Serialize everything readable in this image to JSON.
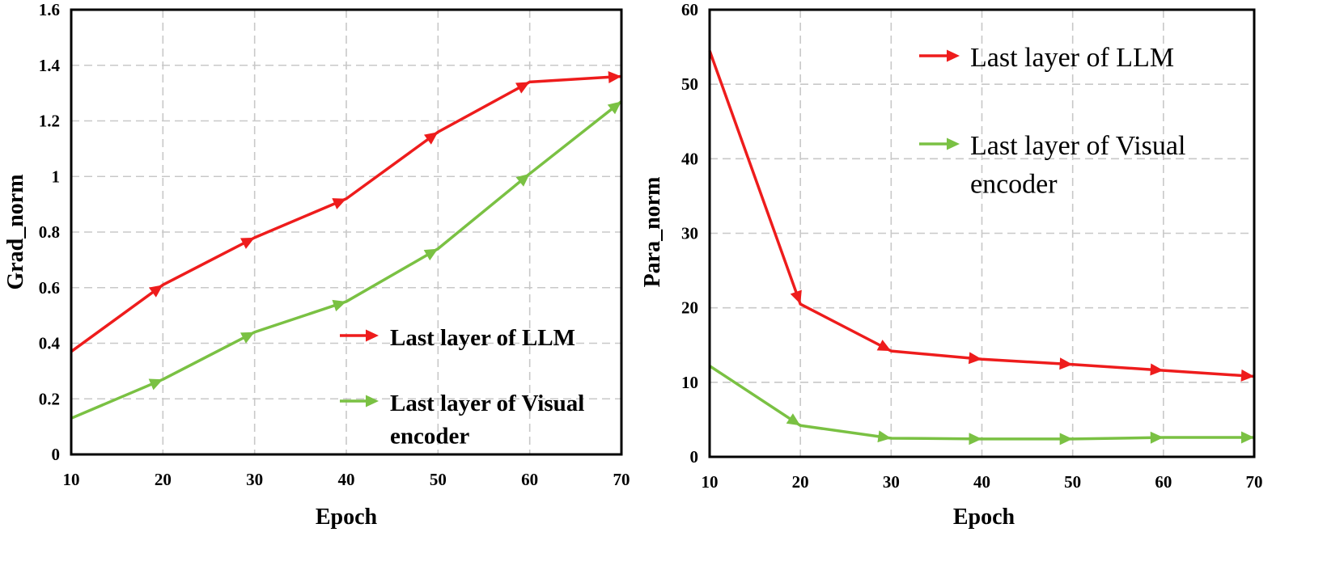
{
  "chart_data": [
    {
      "type": "line",
      "title": "",
      "xlabel": "Epoch",
      "ylabel": "Grad_norm",
      "xlim": [
        10,
        70
      ],
      "ylim": [
        0,
        1.6
      ],
      "xticks": [
        10,
        20,
        30,
        40,
        50,
        60,
        70
      ],
      "yticks": [
        0,
        0.2,
        0.4,
        0.6,
        0.8,
        1.0,
        1.2,
        1.4,
        1.6
      ],
      "ytick_labels": [
        "0",
        "0.2",
        "0.4",
        "0.6",
        "0.8",
        "1",
        "1.2",
        "1.4",
        "1.6"
      ],
      "grid": true,
      "legend_position": "bottom-right",
      "x": [
        10,
        20,
        30,
        40,
        50,
        60,
        70
      ],
      "series": [
        {
          "name": "Last layer of LLM",
          "color": "#ee1c1c",
          "values": [
            0.37,
            0.61,
            0.78,
            0.92,
            1.16,
            1.34,
            1.36
          ]
        },
        {
          "name": "Last layer of Visual encoder",
          "color": "#7ac143",
          "values": [
            0.13,
            0.27,
            0.44,
            0.55,
            0.74,
            1.01,
            1.27
          ]
        }
      ]
    },
    {
      "type": "line",
      "title": "",
      "xlabel": "Epoch",
      "ylabel": "Para_norm",
      "xlim": [
        10,
        70
      ],
      "ylim": [
        0,
        60
      ],
      "xticks": [
        10,
        20,
        30,
        40,
        50,
        60,
        70
      ],
      "yticks": [
        0,
        10,
        20,
        30,
        40,
        50,
        60
      ],
      "ytick_labels": [
        "0",
        "10",
        "20",
        "30",
        "40",
        "50",
        "60"
      ],
      "grid": true,
      "legend_position": "top-right",
      "x": [
        10,
        20,
        30,
        40,
        50,
        60,
        70
      ],
      "series": [
        {
          "name": "Last layer of LLM",
          "color": "#ee1c1c",
          "values": [
            54.5,
            20.5,
            14.2,
            13.1,
            12.4,
            11.6,
            10.8
          ]
        },
        {
          "name": "Last layer of Visual encoder",
          "color": "#7ac143",
          "values": [
            12.2,
            4.2,
            2.5,
            2.4,
            2.4,
            2.6,
            2.6
          ]
        }
      ]
    }
  ]
}
